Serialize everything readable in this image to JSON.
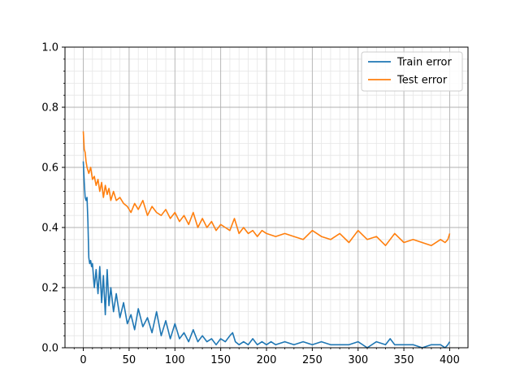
{
  "chart_data": {
    "type": "line",
    "title": "",
    "xlabel": "",
    "ylabel": "",
    "xlim": [
      -20,
      420
    ],
    "ylim": [
      0,
      1.0
    ],
    "xticks": [
      0,
      50,
      100,
      150,
      200,
      250,
      300,
      350,
      400
    ],
    "xtick_labels": [
      "0",
      "50",
      "100",
      "150",
      "200",
      "250",
      "300",
      "350",
      "400"
    ],
    "yticks": [
      0,
      0.2,
      0.4,
      0.6,
      0.8,
      1.0
    ],
    "ytick_labels": [
      "0.0",
      "0.2",
      "0.4",
      "0.6",
      "0.8",
      "1.0"
    ],
    "grid": {
      "major": true,
      "minor": true
    },
    "legend_position": "top-right",
    "series": [
      {
        "name": "Train error",
        "color": "#1f77b4",
        "x": [
          0,
          1,
          2,
          3,
          4,
          5,
          6,
          7,
          8,
          9,
          10,
          12,
          14,
          16,
          18,
          20,
          22,
          24,
          26,
          28,
          30,
          33,
          36,
          40,
          44,
          48,
          52,
          56,
          60,
          65,
          70,
          75,
          80,
          85,
          90,
          95,
          100,
          105,
          110,
          115,
          120,
          125,
          130,
          135,
          140,
          145,
          150,
          155,
          160,
          163,
          166,
          170,
          175,
          180,
          185,
          190,
          195,
          200,
          205,
          210,
          220,
          230,
          240,
          250,
          260,
          270,
          280,
          290,
          300,
          310,
          320,
          330,
          335,
          340,
          350,
          360,
          370,
          380,
          390,
          395,
          398,
          400
        ],
        "y": [
          0.62,
          0.55,
          0.5,
          0.49,
          0.5,
          0.42,
          0.3,
          0.28,
          0.29,
          0.27,
          0.28,
          0.2,
          0.26,
          0.18,
          0.27,
          0.15,
          0.24,
          0.11,
          0.26,
          0.14,
          0.2,
          0.12,
          0.18,
          0.1,
          0.15,
          0.08,
          0.11,
          0.06,
          0.13,
          0.07,
          0.1,
          0.05,
          0.12,
          0.04,
          0.09,
          0.03,
          0.08,
          0.03,
          0.05,
          0.02,
          0.06,
          0.02,
          0.04,
          0.02,
          0.03,
          0.01,
          0.03,
          0.02,
          0.04,
          0.05,
          0.02,
          0.01,
          0.02,
          0.01,
          0.03,
          0.01,
          0.02,
          0.01,
          0.02,
          0.01,
          0.02,
          0.01,
          0.02,
          0.01,
          0.02,
          0.01,
          0.01,
          0.01,
          0.02,
          0.0,
          0.02,
          0.01,
          0.03,
          0.01,
          0.01,
          0.01,
          0.0,
          0.01,
          0.01,
          0.0,
          0.01,
          0.02
        ]
      },
      {
        "name": "Test error",
        "color": "#ff7f0e",
        "x": [
          0,
          1,
          2,
          3,
          4,
          6,
          8,
          10,
          12,
          14,
          16,
          18,
          20,
          22,
          24,
          26,
          28,
          30,
          33,
          36,
          40,
          44,
          48,
          52,
          56,
          60,
          65,
          70,
          75,
          80,
          85,
          90,
          95,
          100,
          105,
          110,
          115,
          120,
          125,
          130,
          135,
          140,
          145,
          150,
          155,
          160,
          165,
          170,
          175,
          180,
          185,
          190,
          195,
          200,
          210,
          220,
          230,
          240,
          250,
          260,
          270,
          280,
          290,
          300,
          310,
          320,
          330,
          340,
          350,
          360,
          370,
          380,
          390,
          395,
          398,
          400
        ],
        "y": [
          0.72,
          0.66,
          0.65,
          0.62,
          0.6,
          0.58,
          0.6,
          0.56,
          0.57,
          0.54,
          0.56,
          0.52,
          0.55,
          0.5,
          0.54,
          0.51,
          0.53,
          0.49,
          0.52,
          0.49,
          0.5,
          0.48,
          0.47,
          0.45,
          0.48,
          0.46,
          0.49,
          0.44,
          0.47,
          0.45,
          0.44,
          0.46,
          0.43,
          0.45,
          0.42,
          0.44,
          0.41,
          0.45,
          0.4,
          0.43,
          0.4,
          0.42,
          0.39,
          0.41,
          0.4,
          0.39,
          0.43,
          0.38,
          0.4,
          0.38,
          0.39,
          0.37,
          0.39,
          0.38,
          0.37,
          0.38,
          0.37,
          0.36,
          0.39,
          0.37,
          0.36,
          0.38,
          0.35,
          0.39,
          0.36,
          0.37,
          0.34,
          0.38,
          0.35,
          0.36,
          0.35,
          0.34,
          0.36,
          0.35,
          0.36,
          0.38
        ]
      }
    ]
  }
}
